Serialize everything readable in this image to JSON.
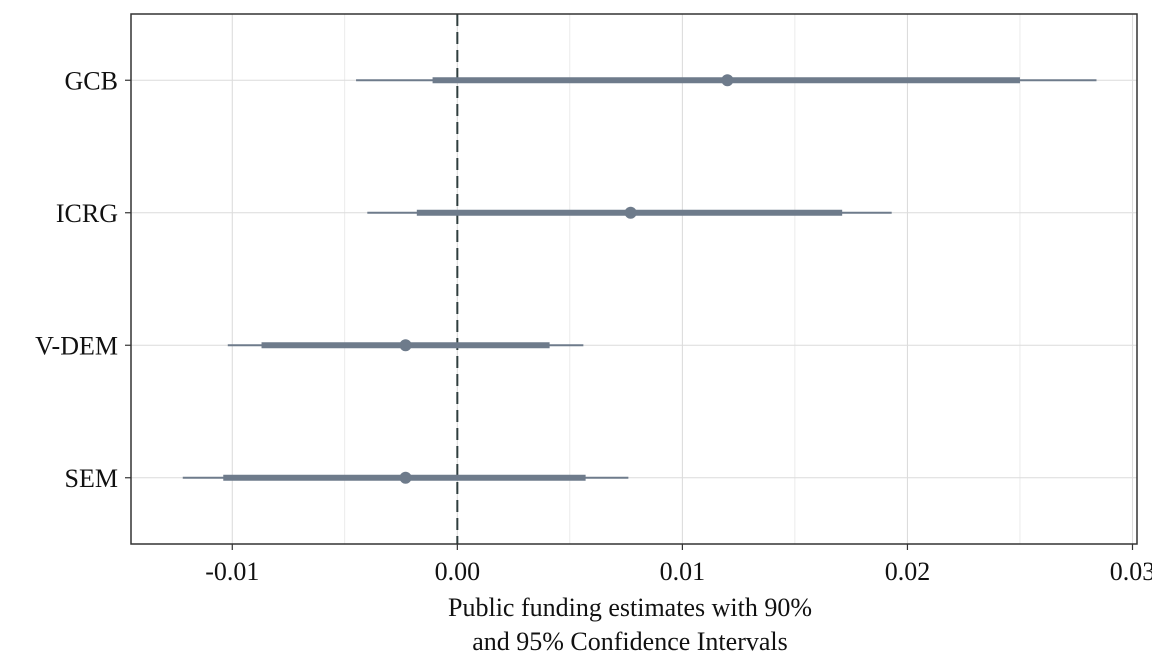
{
  "chart_data": {
    "type": "forest",
    "title": "",
    "xlabel_lines": [
      "Public funding estimates with 90%",
      "and 95% Confidence Intervals"
    ],
    "ylabel": "",
    "xlim": [
      -0.0145,
      0.0302
    ],
    "x_ticks": [
      -0.01,
      0.0,
      0.01,
      0.02,
      0.03
    ],
    "x_tick_labels": [
      "-0.01",
      "0.00",
      "0.01",
      "0.02",
      "0.03"
    ],
    "reference_line": {
      "x": 0,
      "style": "dashed"
    },
    "grid": true,
    "colors": {
      "estimate": "#6e7b8b",
      "reference": "#2f3e3e",
      "grid": "#dcdcdc",
      "panel_border": "#333333"
    },
    "categories": [
      "GCB",
      "ICRG",
      "V-DEM",
      "SEM"
    ],
    "estimates": [
      {
        "label": "GCB",
        "estimate": 0.012,
        "ci90": [
          -0.0011,
          0.025
        ],
        "ci95": [
          -0.0045,
          0.0284
        ]
      },
      {
        "label": "ICRG",
        "estimate": 0.0077,
        "ci90": [
          -0.0018,
          0.0171
        ],
        "ci95": [
          -0.004,
          0.0193
        ]
      },
      {
        "label": "V-DEM",
        "estimate": -0.0023,
        "ci90": [
          -0.0087,
          0.0041
        ],
        "ci95": [
          -0.0102,
          0.0056
        ]
      },
      {
        "label": "SEM",
        "estimate": -0.0023,
        "ci90": [
          -0.0104,
          0.0057
        ],
        "ci95": [
          -0.0122,
          0.0076
        ]
      }
    ]
  }
}
